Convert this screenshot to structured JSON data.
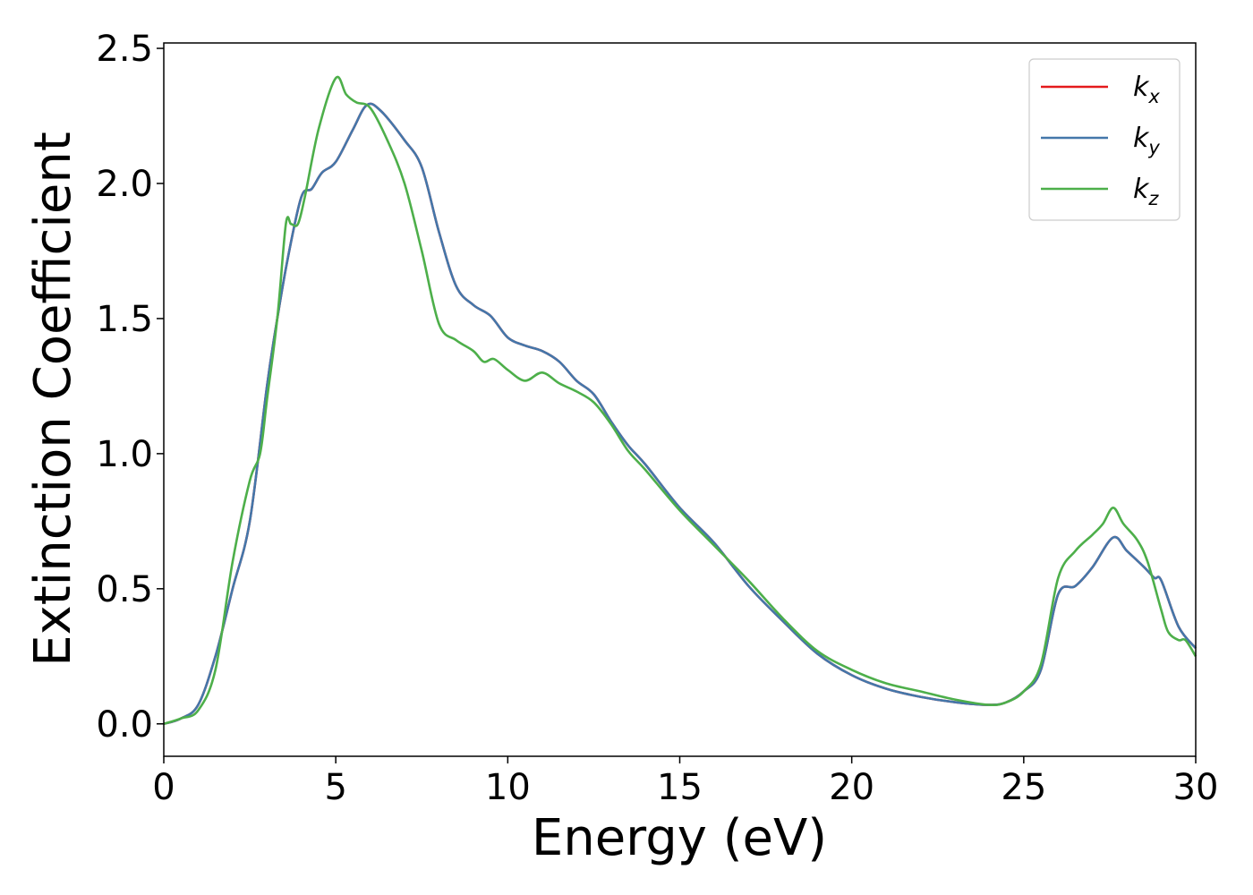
{
  "chart_data": {
    "type": "line",
    "xlabel": "Energy (eV)",
    "ylabel": "Extinction Coefficient",
    "xlim": [
      0,
      30
    ],
    "ylim": [
      -0.12,
      2.52
    ],
    "xticks": [
      0,
      5,
      10,
      15,
      20,
      25,
      30
    ],
    "xtick_labels": [
      "0",
      "5",
      "10",
      "15",
      "20",
      "25",
      "30"
    ],
    "yticks": [
      0.0,
      0.5,
      1.0,
      1.5,
      2.0,
      2.5
    ],
    "ytick_labels": [
      "0.0",
      "0.5",
      "1.0",
      "1.5",
      "2.0",
      "2.5"
    ],
    "grid": false,
    "legend_position": "top-right",
    "series": [
      {
        "name": "k_x",
        "base": "k",
        "sub": "x",
        "color": "#e41a1c",
        "x": [
          0,
          0.5,
          1.0,
          1.5,
          2.0,
          2.5,
          3.0,
          3.3,
          3.6,
          4.0,
          4.3,
          4.6,
          5.0,
          5.5,
          5.9,
          6.3,
          7.0,
          7.5,
          8.0,
          8.5,
          9.0,
          9.5,
          10.0,
          10.5,
          11.0,
          11.5,
          12.0,
          12.5,
          13.0,
          13.5,
          14.0,
          15.0,
          16.0,
          17.0,
          18.0,
          19.0,
          20.0,
          21.0,
          22.0,
          23.0,
          24.0,
          24.5,
          25.0,
          25.5,
          26.0,
          26.5,
          27.0,
          27.6,
          28.0,
          28.5,
          28.8,
          29.0,
          29.5,
          30.0
        ],
        "y": [
          0.0,
          0.02,
          0.07,
          0.25,
          0.5,
          0.75,
          1.25,
          1.5,
          1.72,
          1.95,
          1.98,
          2.04,
          2.08,
          2.2,
          2.29,
          2.27,
          2.16,
          2.06,
          1.82,
          1.62,
          1.55,
          1.51,
          1.43,
          1.4,
          1.38,
          1.34,
          1.27,
          1.22,
          1.12,
          1.03,
          0.96,
          0.8,
          0.67,
          0.51,
          0.38,
          0.26,
          0.18,
          0.13,
          0.1,
          0.08,
          0.07,
          0.08,
          0.12,
          0.2,
          0.48,
          0.51,
          0.58,
          0.69,
          0.64,
          0.58,
          0.54,
          0.53,
          0.36,
          0.28
        ]
      },
      {
        "name": "k_y",
        "base": "k",
        "sub": "y",
        "color": "#4477aa",
        "x": [
          0,
          0.5,
          1.0,
          1.5,
          2.0,
          2.5,
          3.0,
          3.3,
          3.6,
          4.0,
          4.3,
          4.6,
          5.0,
          5.5,
          5.9,
          6.3,
          7.0,
          7.5,
          8.0,
          8.5,
          9.0,
          9.5,
          10.0,
          10.5,
          11.0,
          11.5,
          12.0,
          12.5,
          13.0,
          13.5,
          14.0,
          15.0,
          16.0,
          17.0,
          18.0,
          19.0,
          20.0,
          21.0,
          22.0,
          23.0,
          24.0,
          24.5,
          25.0,
          25.5,
          26.0,
          26.5,
          27.0,
          27.6,
          28.0,
          28.5,
          28.8,
          29.0,
          29.5,
          30.0
        ],
        "y": [
          0.0,
          0.02,
          0.07,
          0.25,
          0.5,
          0.75,
          1.25,
          1.5,
          1.72,
          1.95,
          1.98,
          2.04,
          2.08,
          2.2,
          2.29,
          2.27,
          2.16,
          2.06,
          1.82,
          1.62,
          1.55,
          1.51,
          1.43,
          1.4,
          1.38,
          1.34,
          1.27,
          1.22,
          1.12,
          1.03,
          0.96,
          0.8,
          0.67,
          0.51,
          0.38,
          0.26,
          0.18,
          0.13,
          0.1,
          0.08,
          0.07,
          0.08,
          0.12,
          0.2,
          0.48,
          0.51,
          0.58,
          0.69,
          0.64,
          0.58,
          0.54,
          0.53,
          0.36,
          0.28
        ]
      },
      {
        "name": "k_z",
        "base": "k",
        "sub": "z",
        "color": "#4daf4a",
        "x": [
          0,
          0.5,
          1.0,
          1.5,
          2.0,
          2.5,
          2.8,
          3.0,
          3.3,
          3.55,
          3.7,
          3.9,
          4.1,
          4.5,
          5.0,
          5.3,
          5.6,
          6.0,
          6.5,
          7.0,
          7.5,
          8.0,
          8.5,
          9.0,
          9.3,
          9.6,
          10.0,
          10.5,
          11.0,
          11.5,
          12.0,
          12.5,
          13.0,
          13.5,
          14.0,
          15.0,
          16.0,
          17.0,
          18.0,
          19.0,
          20.0,
          21.0,
          22.0,
          23.0,
          24.0,
          24.5,
          25.0,
          25.5,
          26.0,
          26.5,
          27.0,
          27.3,
          27.6,
          27.9,
          28.3,
          28.6,
          29.0,
          29.2,
          29.5,
          29.7,
          30.0
        ],
        "y": [
          0.0,
          0.02,
          0.05,
          0.2,
          0.6,
          0.9,
          1.0,
          1.2,
          1.5,
          1.85,
          1.85,
          1.85,
          1.95,
          2.2,
          2.39,
          2.33,
          2.3,
          2.28,
          2.16,
          2.0,
          1.75,
          1.48,
          1.42,
          1.38,
          1.34,
          1.35,
          1.31,
          1.27,
          1.3,
          1.26,
          1.23,
          1.19,
          1.11,
          1.01,
          0.94,
          0.79,
          0.66,
          0.53,
          0.39,
          0.27,
          0.2,
          0.15,
          0.12,
          0.09,
          0.07,
          0.08,
          0.12,
          0.22,
          0.54,
          0.64,
          0.7,
          0.74,
          0.8,
          0.74,
          0.68,
          0.6,
          0.42,
          0.34,
          0.31,
          0.31,
          0.25
        ]
      }
    ]
  }
}
